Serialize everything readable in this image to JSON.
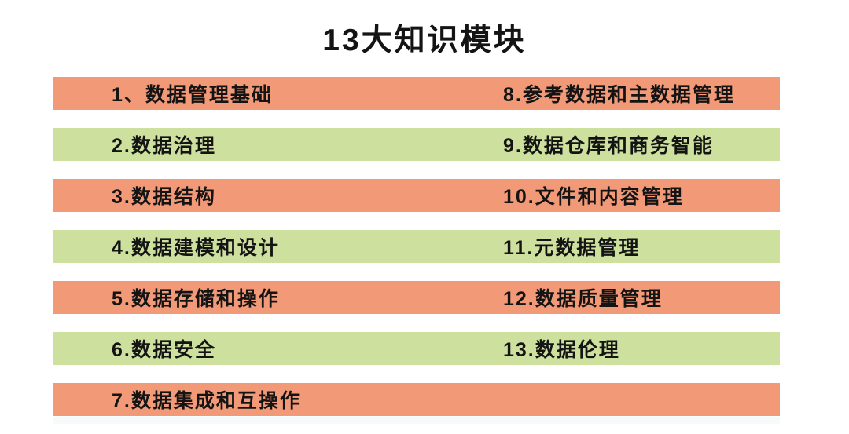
{
  "title": "13大知识模块",
  "colors": {
    "orange": "#F29A77",
    "green": "#CDE09E",
    "text": "#141414",
    "background": "#FFFFFF",
    "bottom_strip": "#F7FAFB"
  },
  "rows": [
    {
      "color": "orange",
      "left": "1、数据管理基础",
      "right": "8.参考数据和主数据管理"
    },
    {
      "color": "green",
      "left": "2.数据治理",
      "right": "9.数据仓库和商务智能"
    },
    {
      "color": "orange",
      "left": "3.数据结构",
      "right": "10.文件和内容管理"
    },
    {
      "color": "green",
      "left": "4.数据建模和设计",
      "right": "11.元数据管理"
    },
    {
      "color": "orange",
      "left": "5.数据存储和操作",
      "right": "12.数据质量管理"
    },
    {
      "color": "green",
      "left": "6.数据安全",
      "right": "13.数据伦理"
    },
    {
      "color": "orange",
      "left": "7.数据集成和互操作",
      "right": ""
    }
  ]
}
